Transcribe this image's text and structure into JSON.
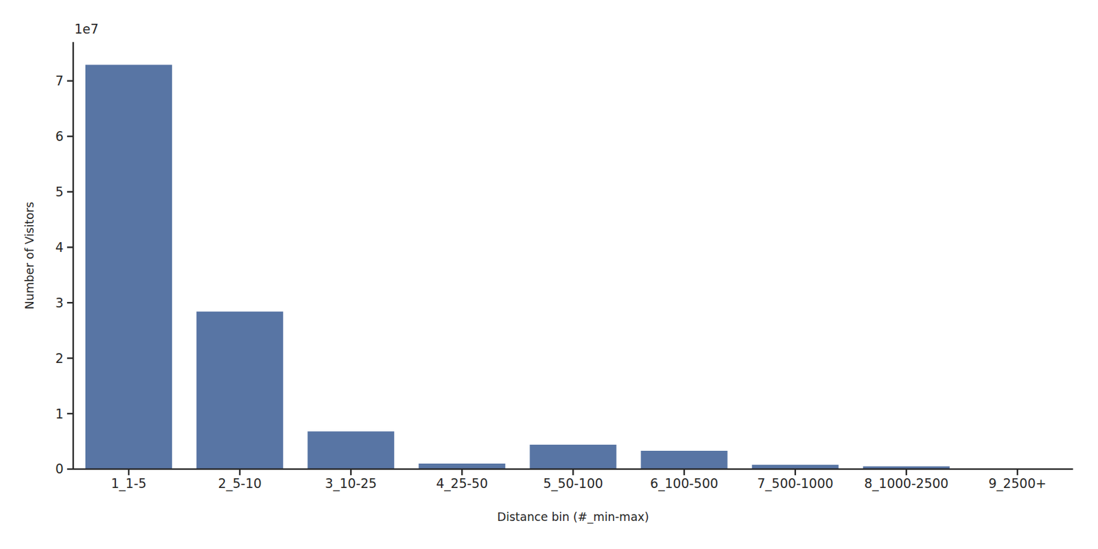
{
  "chart_data": {
    "type": "bar",
    "x_label": "Distance bin (#_min-max)",
    "y_label": "Number of Visitors",
    "annotations": [
      "1e7"
    ],
    "categories": [
      "1_1-5",
      "2_5-10",
      "3_10-25",
      "4_25-50",
      "5_50-100",
      "6_100-500",
      "7_500-1000",
      "8_1000-2500",
      "9_2500+"
    ],
    "values": [
      7.29,
      2.84,
      0.68,
      0.1,
      0.44,
      0.33,
      0.076,
      0.05,
      0.005
    ],
    "color": "#5875a4",
    "ylim": [
      0,
      7.7
    ],
    "yticks": [
      0,
      1,
      2,
      3,
      4,
      5,
      6,
      7
    ],
    "grid": false
  }
}
